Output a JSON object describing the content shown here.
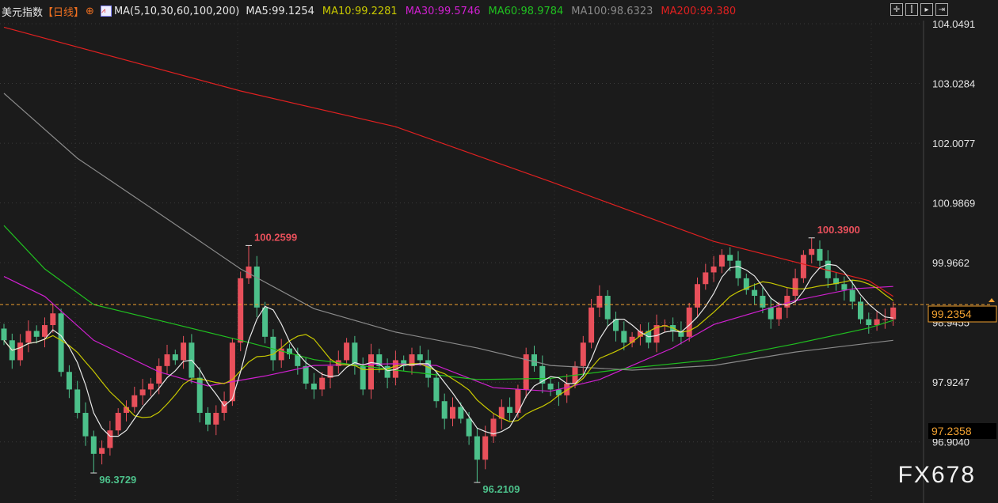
{
  "header": {
    "symbol": "美元指数",
    "period": "【日线】",
    "period_icon": "circle-plus-icon",
    "ma_params": "MA(5,10,30,60,100,200)",
    "ma_values": [
      {
        "label": "MA5:99.1254",
        "color": "#e8e8e8"
      },
      {
        "label": "MA10:99.2281",
        "color": "#c8c800"
      },
      {
        "label": "MA30:99.5746",
        "color": "#d020d0"
      },
      {
        "label": "MA60:98.9784",
        "color": "#20c020"
      },
      {
        "label": "MA100:98.6323",
        "color": "#8a8a8a"
      },
      {
        "label": "MA200:99.380",
        "color": "#e02020"
      }
    ]
  },
  "toolbar": [
    "crosshair-icon",
    "zoom-range-icon",
    "play-icon",
    "goto-end-icon"
  ],
  "watermark": "FX678",
  "colors": {
    "up": "#e8505b",
    "down": "#4cc08a",
    "current_line": "#f0a030"
  },
  "chart_data": {
    "type": "candlestick",
    "y_axis": {
      "range": [
        96.3,
        104.1
      ],
      "ticks": [
        "104.0491",
        "103.0284",
        "102.0077",
        "100.9869",
        "99.9662",
        "98.9455",
        "97.9247",
        "96.9040"
      ]
    },
    "closes": [
      98.64,
      98.3,
      98.6,
      98.8,
      98.7,
      98.9,
      99.1,
      98.1,
      97.8,
      97.4,
      97.0,
      96.7,
      96.8,
      97.1,
      97.4,
      97.5,
      97.7,
      97.8,
      97.9,
      98.2,
      98.4,
      98.3,
      98.6,
      98.0,
      97.4,
      97.2,
      97.4,
      97.6,
      98.6,
      99.7,
      99.9,
      99.2,
      98.7,
      98.3,
      98.5,
      98.4,
      98.2,
      97.9,
      97.8,
      98.0,
      98.2,
      98.3,
      98.6,
      98.2,
      97.8,
      98.4,
      98.2,
      98.0,
      98.3,
      98.2,
      98.4,
      98.3,
      98.0,
      97.6,
      97.3,
      97.5,
      97.3,
      97.0,
      96.6,
      97.0,
      97.3,
      97.5,
      97.4,
      97.8,
      98.4,
      98.2,
      97.9,
      97.8,
      97.7,
      97.9,
      98.2,
      98.6,
      99.2,
      99.4,
      99.0,
      98.8,
      98.6,
      98.7,
      98.8,
      98.6,
      98.9,
      98.9,
      98.8,
      98.7,
      99.2,
      99.6,
      99.8,
      99.9,
      100.1,
      100.0,
      99.7,
      99.5,
      99.4,
      99.2,
      99.0,
      99.2,
      99.4,
      99.7,
      100.1,
      100.2,
      100.0,
      99.7,
      99.6,
      99.5,
      99.3,
      99.0,
      98.9,
      99.0,
      99.0,
      99.2
    ],
    "extremes": [
      {
        "index": 11,
        "type": "low",
        "value": 96.3729,
        "label": "96.3729"
      },
      {
        "index": 30,
        "type": "high",
        "value": 100.2599,
        "label": "100.2599"
      },
      {
        "index": 58,
        "type": "low",
        "value": 96.2109,
        "label": "96.2109"
      },
      {
        "index": 99,
        "type": "high",
        "value": 100.39,
        "label": "100.3900"
      }
    ],
    "moving_averages": [
      {
        "name": "MA30",
        "color": "#d020d0",
        "points": [
          [
            0,
            99.73
          ],
          [
            5,
            99.39
          ],
          [
            11,
            98.64
          ],
          [
            19,
            98.1
          ],
          [
            25,
            97.86
          ],
          [
            32,
            98.03
          ],
          [
            38,
            98.21
          ],
          [
            48,
            98.24
          ],
          [
            53,
            98.21
          ],
          [
            60,
            97.83
          ],
          [
            67,
            97.77
          ],
          [
            73,
            97.97
          ],
          [
            82,
            98.51
          ],
          [
            87,
            98.91
          ],
          [
            97,
            99.32
          ],
          [
            104,
            99.52
          ],
          [
            109,
            99.56
          ]
        ]
      },
      {
        "name": "MA60",
        "color": "#20c020",
        "points": [
          [
            0,
            100.6
          ],
          [
            5,
            99.86
          ],
          [
            11,
            99.25
          ],
          [
            19,
            98.98
          ],
          [
            29,
            98.64
          ],
          [
            38,
            98.31
          ],
          [
            48,
            98.13
          ],
          [
            58,
            97.97
          ],
          [
            67,
            97.99
          ],
          [
            77,
            98.17
          ],
          [
            87,
            98.31
          ],
          [
            97,
            98.58
          ],
          [
            106,
            98.85
          ],
          [
            109,
            98.98
          ]
        ]
      },
      {
        "name": "MA100",
        "color": "#8a8a8a",
        "points": [
          [
            0,
            102.86
          ],
          [
            9,
            101.75
          ],
          [
            19,
            100.81
          ],
          [
            29,
            99.86
          ],
          [
            38,
            99.18
          ],
          [
            48,
            98.78
          ],
          [
            58,
            98.51
          ],
          [
            67,
            98.21
          ],
          [
            77,
            98.13
          ],
          [
            87,
            98.21
          ],
          [
            97,
            98.44
          ],
          [
            109,
            98.64
          ]
        ]
      },
      {
        "name": "MA200",
        "color": "#e02020",
        "points": [
          [
            0,
            103.99
          ],
          [
            29,
            102.9
          ],
          [
            48,
            102.29
          ],
          [
            67,
            101.35
          ],
          [
            87,
            100.33
          ],
          [
            106,
            99.66
          ],
          [
            109,
            99.39
          ]
        ]
      }
    ],
    "current_price": "99.2354",
    "current_value": 99.25,
    "secondary_label": "97.2358"
  }
}
